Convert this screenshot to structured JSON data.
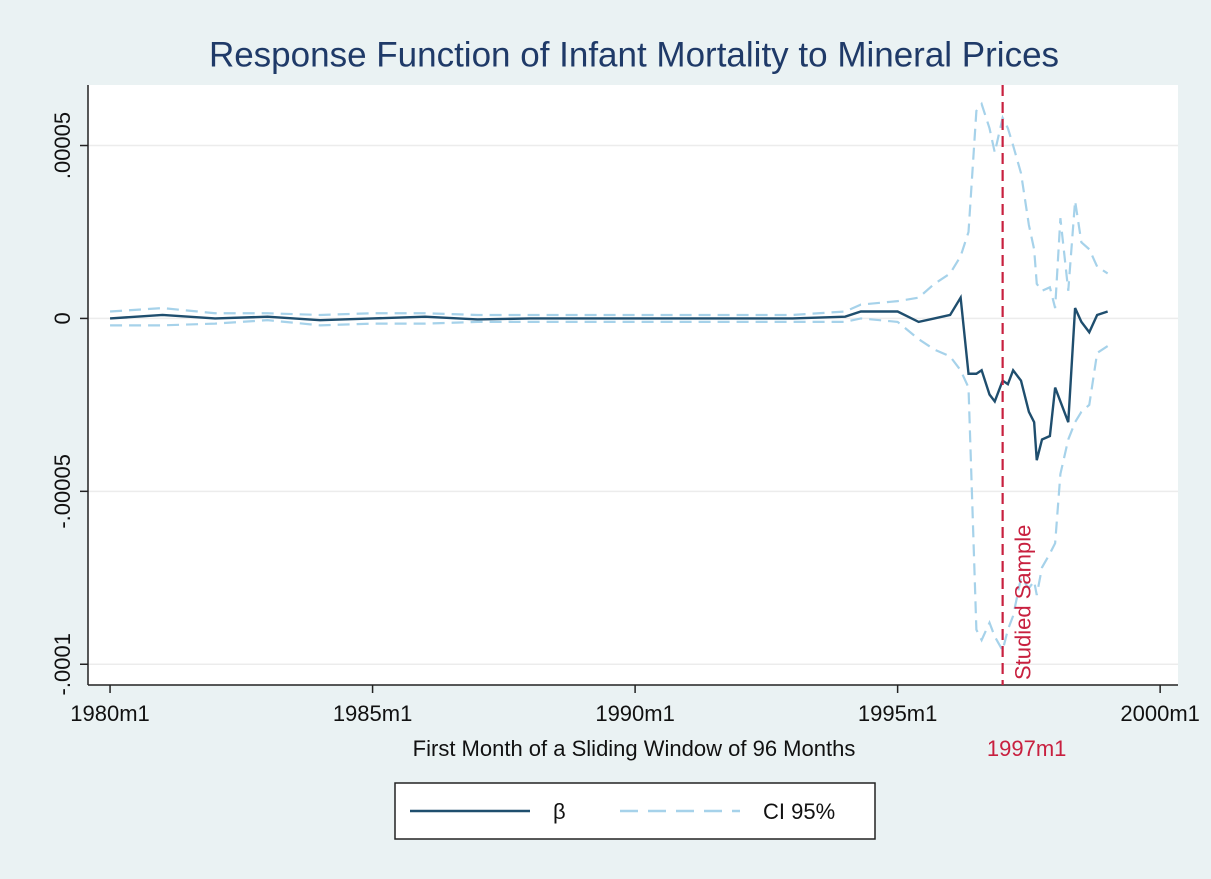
{
  "chart_data": {
    "type": "line",
    "title": "Response Function of Infant Mortality to Mineral Prices",
    "x_label": "First Month of a Sliding Window of 96 Months",
    "x": [
      1980,
      1981,
      1982,
      1983,
      1984,
      1985,
      1986,
      1987,
      1988,
      1989,
      1990,
      1991,
      1992,
      1993,
      1994,
      1994.3,
      1995,
      1995.4,
      1995.7,
      1996,
      1996.2,
      1996.35,
      1996.5,
      1996.6,
      1996.75,
      1996.85,
      1997,
      1997.1,
      1997.2,
      1997.35,
      1997.5,
      1997.6,
      1997.65,
      1997.75,
      1997.9,
      1998,
      1998.1,
      1998.25,
      1998.38,
      1998.5,
      1998.65,
      1998.8,
      1999
    ],
    "series": [
      {
        "name": "β",
        "color": "#1f4e6e",
        "dashed": false,
        "values": [
          0,
          1e-06,
          0,
          5e-07,
          -5e-07,
          0,
          5e-07,
          -3e-07,
          0,
          0,
          0,
          0,
          0,
          0,
          5e-07,
          2e-06,
          2e-06,
          -1e-06,
          0,
          1e-06,
          6e-06,
          -1.6e-05,
          -1.6e-05,
          -1.5e-05,
          -2.2e-05,
          -2.4e-05,
          -1.8e-05,
          -1.9e-05,
          -1.5e-05,
          -1.8e-05,
          -2.7e-05,
          -3e-05,
          -4.1e-05,
          -3.5e-05,
          -3.4e-05,
          -2e-05,
          -2.4e-05,
          -3e-05,
          3e-06,
          -1e-06,
          -4e-06,
          1e-06,
          2e-06
        ]
      },
      {
        "name": "CI 95%",
        "color": "#a6d2ea",
        "dashed": true,
        "upper": [
          2e-06,
          3e-06,
          1.5e-06,
          1.5e-06,
          1e-06,
          1.5e-06,
          1.5e-06,
          1e-06,
          1e-06,
          1e-06,
          1e-06,
          1e-06,
          1e-06,
          1e-06,
          2e-06,
          4e-06,
          5e-06,
          6e-06,
          1e-05,
          1.3e-05,
          1.8e-05,
          2.5e-05,
          6e-05,
          6.2e-05,
          5.5e-05,
          4.8e-05,
          5.8e-05,
          5.5e-05,
          5e-05,
          4.2e-05,
          2.7e-05,
          2e-05,
          1e-05,
          8e-06,
          9e-06,
          3e-06,
          2.9e-05,
          8e-06,
          3.4e-05,
          2.2e-05,
          2e-05,
          1.5e-05,
          1.3e-05
        ],
        "lower": [
          -2e-06,
          -2e-06,
          -1.5e-06,
          -5e-07,
          -2e-06,
          -1.5e-06,
          -1.5e-06,
          -1e-06,
          -1e-06,
          -1e-06,
          -1e-06,
          -1e-06,
          -1e-06,
          -1e-06,
          -1e-06,
          0,
          -1e-06,
          -6e-06,
          -9e-06,
          -1.1e-05,
          -1.5e-05,
          -2e-05,
          -9e-05,
          -9.3e-05,
          -8.8e-05,
          -9.2e-05,
          -9.6e-05,
          -9e-05,
          -8.6e-05,
          -7.5e-05,
          -7.8e-05,
          -7.6e-05,
          -8e-05,
          -7.2e-05,
          -6.8e-05,
          -6.5e-05,
          -4.5e-05,
          -3.5e-05,
          -3e-05,
          -2.7e-05,
          -2.5e-05,
          -1e-05,
          -8e-06
        ]
      }
    ],
    "xlim": [
      1979.58,
      2000.34
    ],
    "xticks": [
      {
        "value": 1980,
        "label": "1980m1"
      },
      {
        "value": 1985,
        "label": "1985m1"
      },
      {
        "value": 1990,
        "label": "1990m1"
      },
      {
        "value": 1995,
        "label": "1995m1"
      },
      {
        "value": 2000,
        "label": "2000m1"
      }
    ],
    "ylim": [
      -0.000106,
      6.75e-05
    ],
    "yticks": [
      {
        "value": -0.0001,
        "label": "-.0001"
      },
      {
        "value": -5e-05,
        "label": "-.00005"
      },
      0,
      {
        "value": 5e-05,
        "label": ".00005"
      }
    ],
    "grid": true,
    "reference_line": {
      "x": 1997,
      "label": "Studied Sample",
      "tick_label": "1997m1",
      "color": "#c8203f"
    },
    "legend": "bottom"
  }
}
